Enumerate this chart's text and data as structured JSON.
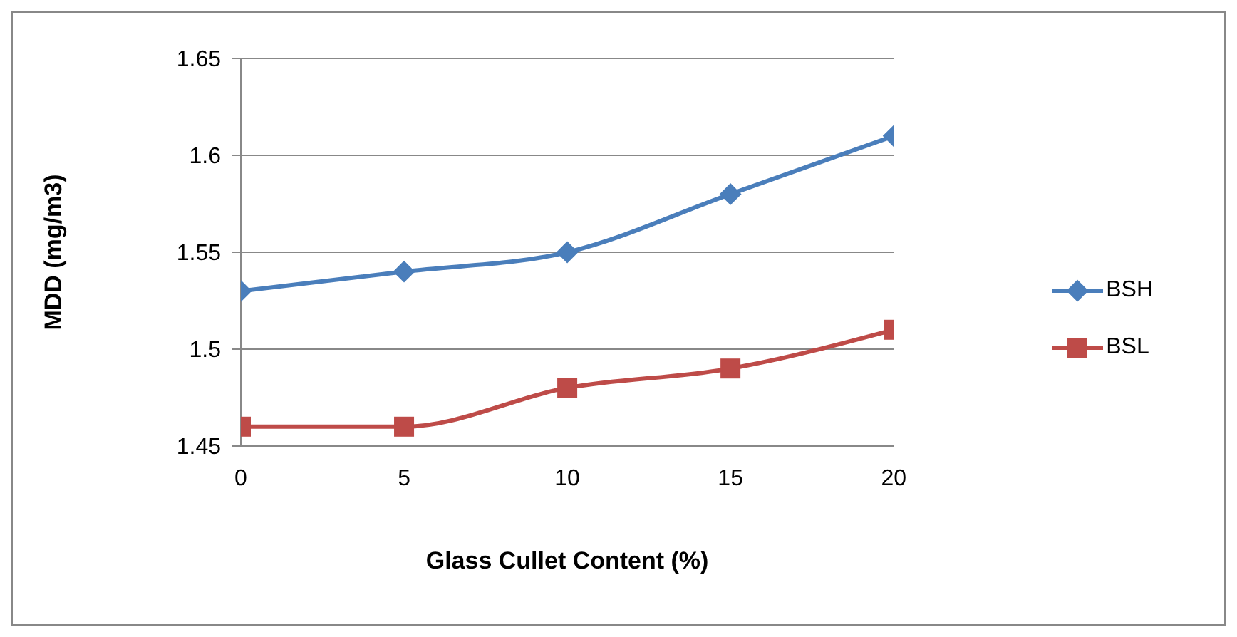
{
  "chart_data": {
    "type": "line",
    "xlabel": "Glass Cullet Content (%)",
    "ylabel": "MDD (mg/m3)",
    "x": [
      0,
      5,
      10,
      15,
      20
    ],
    "series": [
      {
        "name": "BSH",
        "color": "#4a7ebb",
        "marker": "diamond",
        "values": [
          1.53,
          1.54,
          1.55,
          1.58,
          1.61
        ]
      },
      {
        "name": "BSL",
        "color": "#be4b48",
        "marker": "square",
        "values": [
          1.46,
          1.46,
          1.48,
          1.49,
          1.51
        ]
      }
    ],
    "xlim": [
      0,
      20
    ],
    "xticks": [
      0,
      5,
      10,
      15,
      20
    ],
    "ylim": [
      1.45,
      1.65
    ],
    "yticks": [
      1.45,
      1.5,
      1.55,
      1.6,
      1.65
    ],
    "grid": "y",
    "legend": "right"
  }
}
